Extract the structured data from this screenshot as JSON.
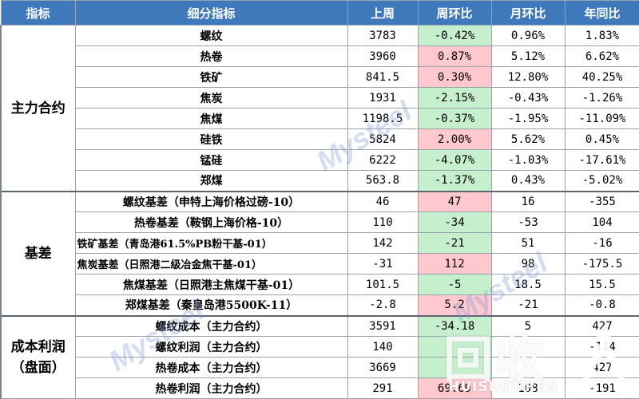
{
  "headers": [
    "指标",
    "细分指标",
    "上周",
    "周环比",
    "月环比",
    "年同比"
  ],
  "groups": {
    "main": "主力合约",
    "basis": "基差",
    "cost": "成本利润（盘面）"
  },
  "rows": [
    {
      "name": "螺纹",
      "last_week": "3783",
      "wow": "-0.42%",
      "mom": "0.96%",
      "yoy": "1.83%"
    },
    {
      "name": "热卷",
      "last_week": "3960",
      "wow": "0.87%",
      "mom": "5.12%",
      "yoy": "6.62%"
    },
    {
      "name": "铁矿",
      "last_week": "841.5",
      "wow": "0.30%",
      "mom": "12.80%",
      "yoy": "40.25%"
    },
    {
      "name": "焦炭",
      "last_week": "1931",
      "wow": "-2.15%",
      "mom": "-0.43%",
      "yoy": "-1.26%"
    },
    {
      "name": "焦煤",
      "last_week": "1198.5",
      "wow": "-0.37%",
      "mom": "-1.95%",
      "yoy": "-11.09%"
    },
    {
      "name": "硅铁",
      "last_week": "5824",
      "wow": "2.00%",
      "mom": "5.62%",
      "yoy": "0.45%"
    },
    {
      "name": "锰硅",
      "last_week": "6222",
      "wow": "-4.07%",
      "mom": "-1.03%",
      "yoy": "-17.61%"
    },
    {
      "name": "郑煤",
      "last_week": "563.8",
      "wow": "-1.37%",
      "mom": "0.43%",
      "yoy": "-5.02%"
    },
    {
      "name": "螺纹基差（申特上海价格过磅-10）",
      "last_week": "46",
      "wow": "47",
      "mom": "16",
      "yoy": "-355"
    },
    {
      "name": "热卷基差（鞍钢上海价格-10）",
      "last_week": "110",
      "wow": "-34",
      "mom": "-53",
      "yoy": "104"
    },
    {
      "name": "铁矿基差（青岛港61.5%PB粉干基-01）",
      "last_week": "142",
      "wow": "-21",
      "mom": "51",
      "yoy": "-16"
    },
    {
      "name": "焦炭基差（日照港二级冶金焦干基-01）",
      "last_week": "-31",
      "wow": "112",
      "mom": "98",
      "yoy": "-175.5"
    },
    {
      "name": "焦煤基差（日照港主焦煤干基-01）",
      "last_week": "101.5",
      "wow": "-5",
      "mom": "18.5",
      "yoy": "15.5"
    },
    {
      "name": "郑煤基差（秦皇岛港5500K-11）",
      "last_week": "-2.8",
      "wow": "5.2",
      "mom": "-21",
      "yoy": "-0.8"
    },
    {
      "name": "螺纹成本（主力合约）",
      "last_week": "3591",
      "wow": "-34.18",
      "mom": "5",
      "yoy": "427"
    },
    {
      "name": "螺纹利润（主力合约）",
      "last_week": "140",
      "wow": "",
      "mom": "",
      "yoy": "-114"
    },
    {
      "name": "热卷成本（主力合约）",
      "last_week": "3669",
      "wow": "",
      "mom": "",
      "yoy": "427"
    },
    {
      "name": "热卷利润（主力合约）",
      "last_week": "291",
      "wow": "69.69",
      "mom": "108",
      "yoy": "-191"
    }
  ],
  "watermark": "Mysteel",
  "logo": {
    "mark": "回收",
    "text": "HUISHOUREN"
  },
  "colors": {
    "header_bg": "#3f79bb",
    "positive_bg": "#ffc7ce",
    "negative_bg": "#c6efce"
  }
}
